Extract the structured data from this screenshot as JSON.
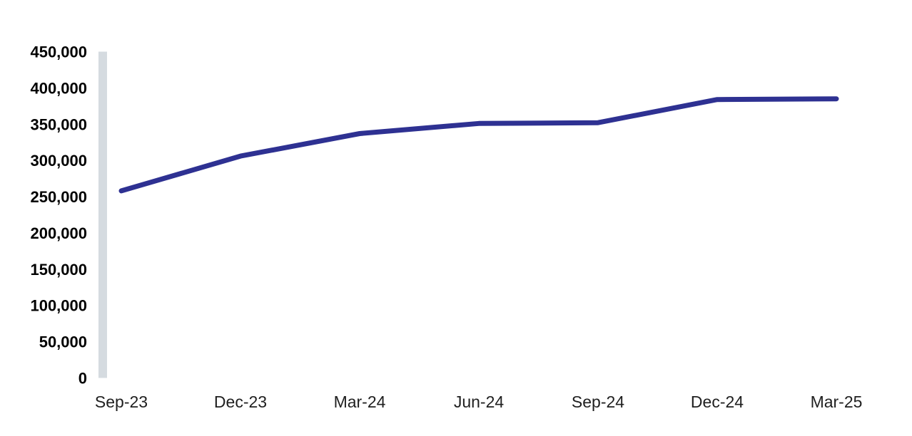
{
  "chart_data": {
    "type": "line",
    "title": "",
    "xlabel": "",
    "ylabel": "",
    "categories": [
      "Sep-23",
      "Dec-23",
      "Mar-24",
      "Jun-24",
      "Sep-24",
      "Dec-24",
      "Mar-25"
    ],
    "series": [
      {
        "name": "series-1",
        "values": [
          258000,
          306000,
          337000,
          351000,
          352000,
          384000,
          385000
        ]
      }
    ],
    "ylim": [
      0,
      450000
    ],
    "ytick_step": 50000,
    "ytick_labels": [
      "0",
      "50,000",
      "100,000",
      "150,000",
      "200,000",
      "250,000",
      "300,000",
      "350,000",
      "400,000",
      "450,000"
    ],
    "grid": false,
    "legend": "none",
    "colors": {
      "line": "#2E3192",
      "axis_bar": "#D5DBE0",
      "ytick_text": "#000000",
      "xtick_text": "#1F1F1F",
      "background": "#FFFFFF"
    }
  }
}
